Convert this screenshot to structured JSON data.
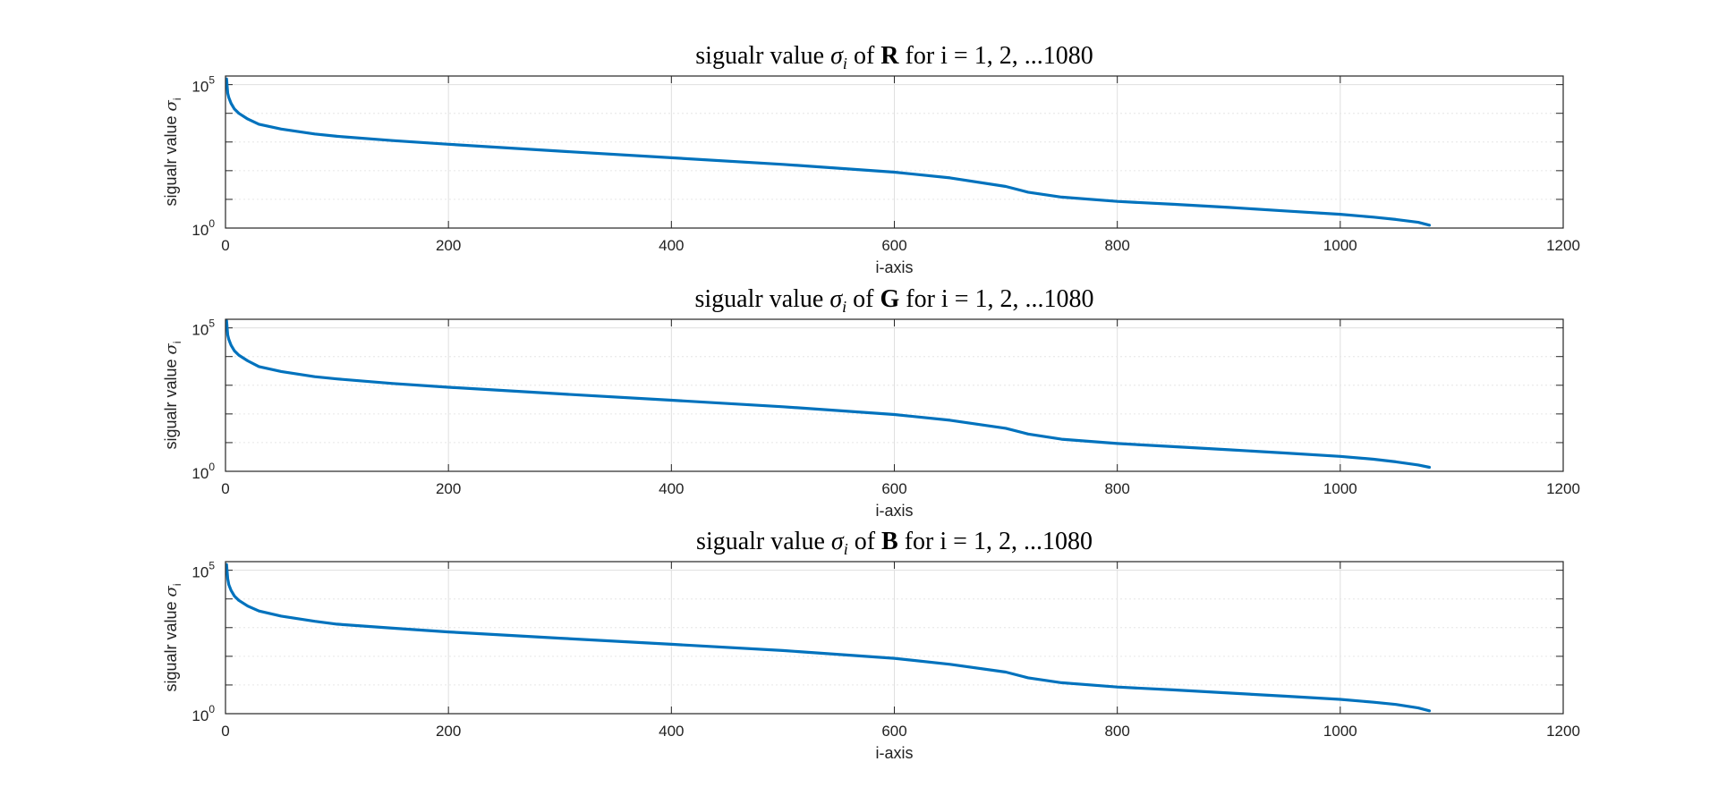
{
  "chart_data": [
    {
      "type": "line",
      "title": {
        "pre": "sigualr value ",
        "sym": "σ",
        "sub": "i",
        "mid": " of ",
        "bold": "R",
        "post": " for i = 1, 2, ...1080"
      },
      "xlabel": "i-axis",
      "ylabel": {
        "text": "sigualr value ",
        "sym": "σ",
        "sub": "i"
      },
      "xlim": [
        0,
        1200
      ],
      "xticks": [
        "0",
        "200",
        "400",
        "600",
        "800",
        "1000",
        "1200"
      ],
      "ylim_log10": [
        0,
        5.3
      ],
      "yscale": "log",
      "yticks": [
        {
          "base": "10",
          "exp": "0"
        },
        {
          "base": "10",
          "exp": "5"
        }
      ],
      "grid": true,
      "line_color": "#0072BD",
      "series": [
        {
          "x": [
            1,
            2,
            3,
            5,
            8,
            12,
            20,
            30,
            50,
            80,
            100,
            150,
            200,
            300,
            400,
            500,
            600,
            650,
            700,
            720,
            750,
            800,
            850,
            900,
            950,
            1000,
            1030,
            1050,
            1070,
            1080
          ],
          "log10_y": [
            5.2,
            4.7,
            4.55,
            4.35,
            4.15,
            4.0,
            3.8,
            3.62,
            3.45,
            3.28,
            3.2,
            3.05,
            2.92,
            2.68,
            2.45,
            2.22,
            1.95,
            1.75,
            1.45,
            1.25,
            1.08,
            0.93,
            0.83,
            0.72,
            0.6,
            0.48,
            0.38,
            0.3,
            0.2,
            0.1
          ]
        }
      ]
    },
    {
      "type": "line",
      "title": {
        "pre": "sigualr value ",
        "sym": "σ",
        "sub": "i",
        "mid": " of ",
        "bold": "G",
        "post": " for i = 1, 2, ...1080"
      },
      "xlabel": "i-axis",
      "ylabel": {
        "text": "sigualr value ",
        "sym": "σ",
        "sub": "i"
      },
      "xlim": [
        0,
        1200
      ],
      "xticks": [
        "0",
        "200",
        "400",
        "600",
        "800",
        "1000",
        "1200"
      ],
      "ylim_log10": [
        0,
        5.3
      ],
      "yscale": "log",
      "yticks": [
        {
          "base": "10",
          "exp": "0"
        },
        {
          "base": "10",
          "exp": "5"
        }
      ],
      "grid": true,
      "line_color": "#0072BD",
      "series": [
        {
          "x": [
            1,
            2,
            3,
            5,
            8,
            12,
            20,
            30,
            50,
            80,
            100,
            150,
            200,
            300,
            400,
            500,
            600,
            650,
            700,
            720,
            750,
            800,
            850,
            900,
            950,
            1000,
            1030,
            1050,
            1070,
            1080
          ],
          "log10_y": [
            5.25,
            4.75,
            4.6,
            4.4,
            4.2,
            4.05,
            3.85,
            3.65,
            3.48,
            3.3,
            3.22,
            3.06,
            2.93,
            2.7,
            2.48,
            2.25,
            1.98,
            1.78,
            1.5,
            1.3,
            1.12,
            0.97,
            0.86,
            0.75,
            0.64,
            0.52,
            0.42,
            0.33,
            0.22,
            0.14
          ]
        }
      ]
    },
    {
      "type": "line",
      "title": {
        "pre": "sigualr value ",
        "sym": "σ",
        "sub": "i",
        "mid": " of ",
        "bold": "B",
        "post": " for i = 1, 2, ...1080"
      },
      "xlabel": "i-axis",
      "ylabel": {
        "text": "sigualr value ",
        "sym": "σ",
        "sub": "i"
      },
      "xlim": [
        0,
        1200
      ],
      "xticks": [
        "0",
        "200",
        "400",
        "600",
        "800",
        "1000",
        "1200"
      ],
      "ylim_log10": [
        0,
        5.3
      ],
      "yscale": "log",
      "yticks": [
        {
          "base": "10",
          "exp": "0"
        },
        {
          "base": "10",
          "exp": "5"
        }
      ],
      "grid": true,
      "line_color": "#0072BD",
      "series": [
        {
          "x": [
            1,
            2,
            3,
            5,
            8,
            12,
            20,
            30,
            50,
            80,
            100,
            150,
            200,
            300,
            400,
            500,
            600,
            650,
            700,
            720,
            750,
            800,
            850,
            900,
            950,
            1000,
            1030,
            1050,
            1070,
            1080
          ],
          "log10_y": [
            5.2,
            4.7,
            4.5,
            4.3,
            4.1,
            3.95,
            3.75,
            3.58,
            3.4,
            3.22,
            3.12,
            2.98,
            2.85,
            2.63,
            2.42,
            2.2,
            1.93,
            1.72,
            1.45,
            1.25,
            1.08,
            0.93,
            0.83,
            0.72,
            0.61,
            0.5,
            0.4,
            0.32,
            0.2,
            0.1
          ]
        }
      ]
    }
  ]
}
